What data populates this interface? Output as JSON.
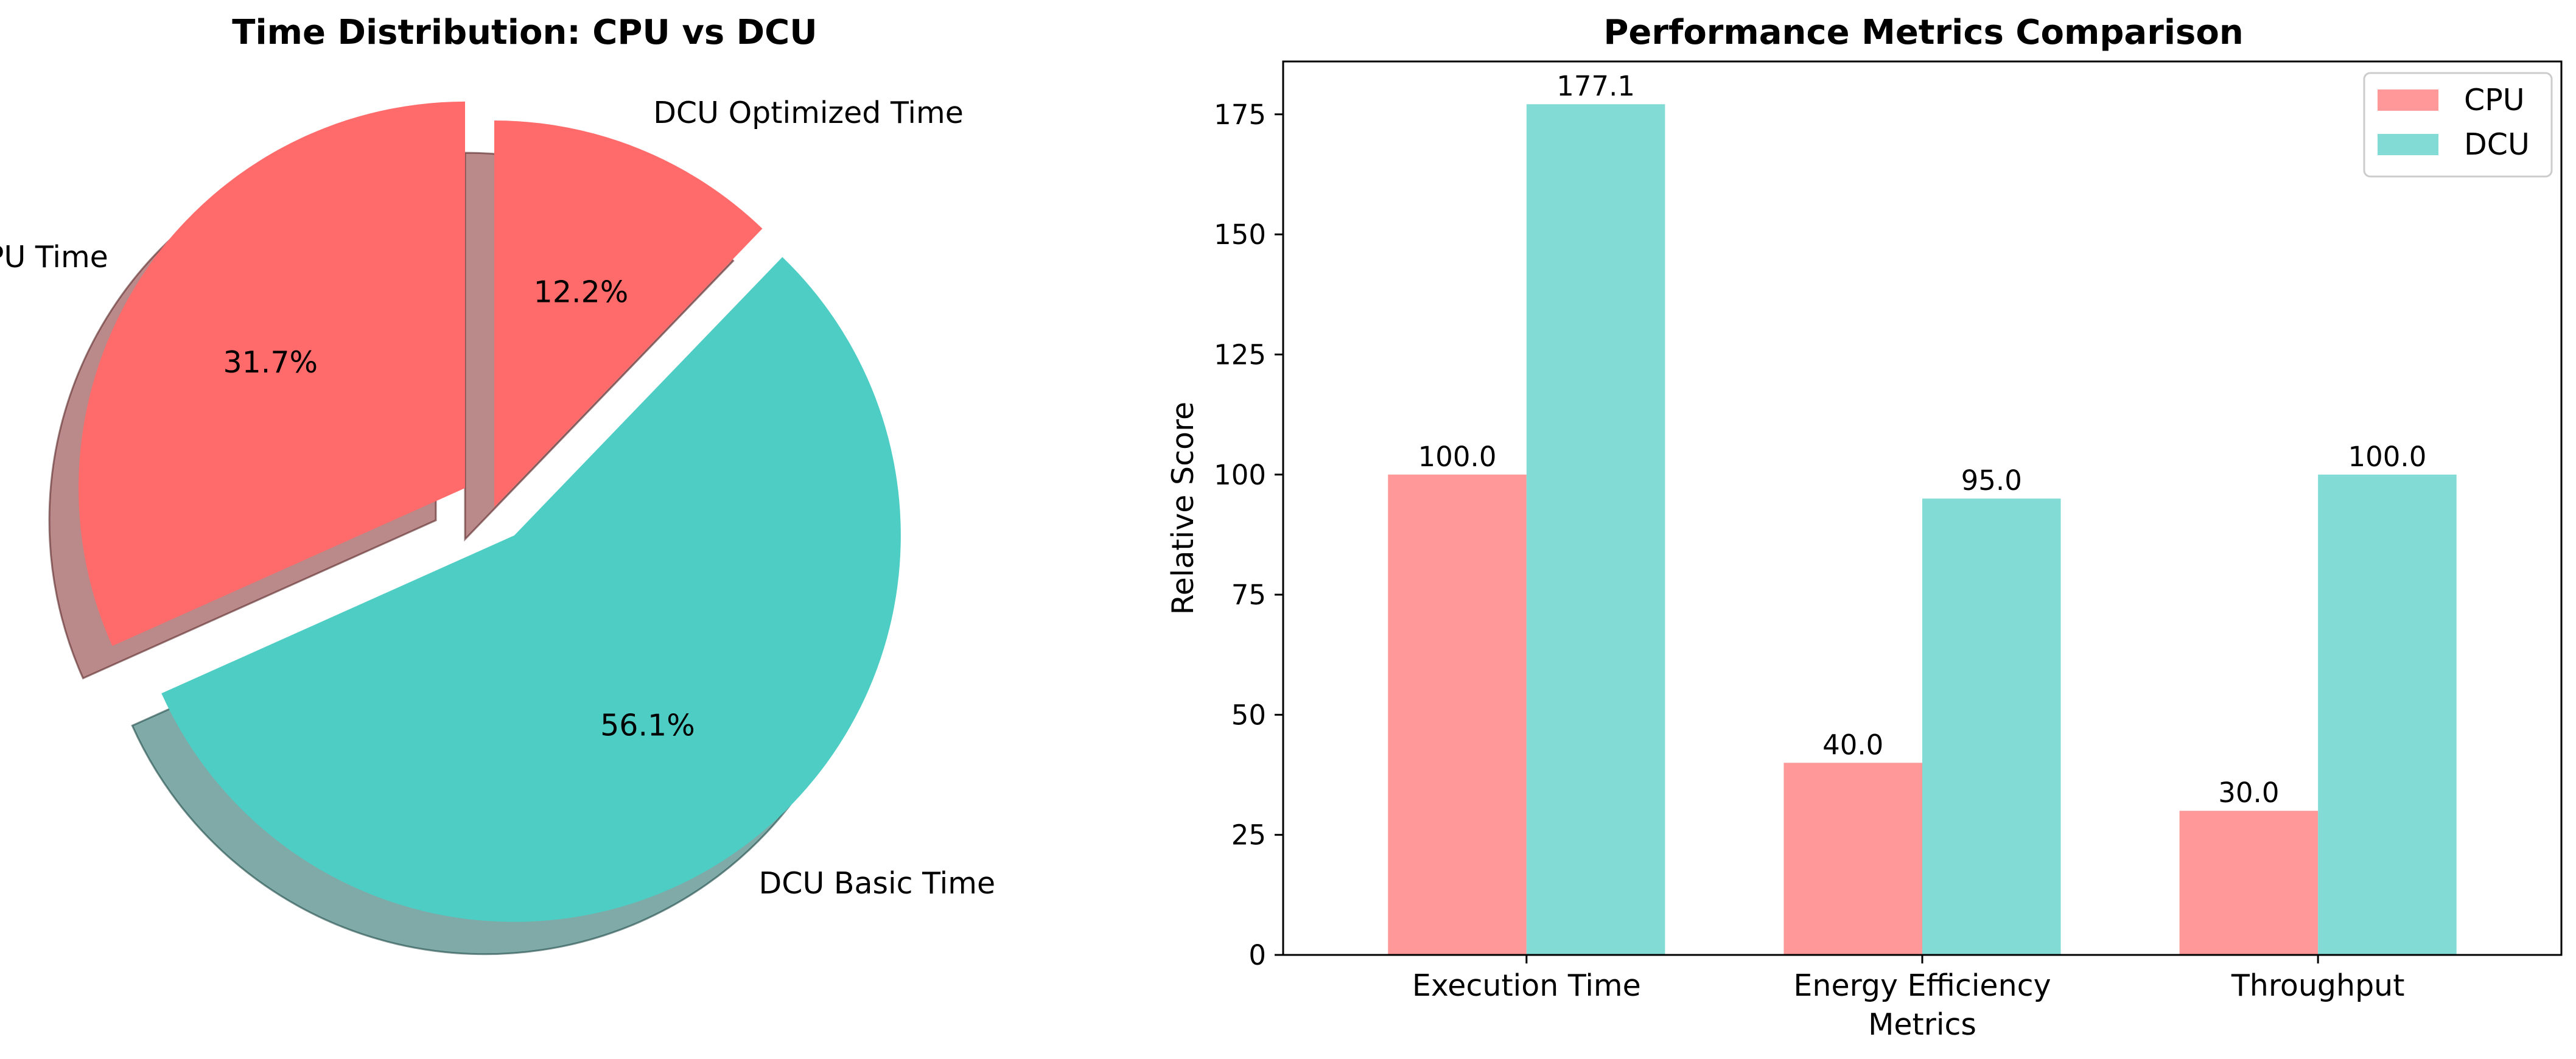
{
  "chart_data": [
    {
      "type": "pie",
      "title": "Time Distribution: CPU vs DCU",
      "slices": [
        {
          "label": "CPU Time",
          "value": 31.7,
          "pct_label": "31.7%",
          "color": "#FF6B6B",
          "exploded": true
        },
        {
          "label": "DCU Basic Time",
          "value": 56.1,
          "pct_label": "56.1%",
          "color": "#4ECDC4",
          "exploded": true
        },
        {
          "label": "DCU Optimized Time",
          "value": 12.2,
          "pct_label": "12.2%",
          "color": "#FF6B6B",
          "exploded": false
        }
      ],
      "start_angle_deg": 90,
      "direction": "counterclockwise",
      "shadow": true
    },
    {
      "type": "bar",
      "title": "Performance Metrics Comparison",
      "xlabel": "Metrics",
      "ylabel": "Relative Score",
      "categories": [
        "Execution Time",
        "Energy Efficiency",
        "Throughput"
      ],
      "series": [
        {
          "name": "CPU",
          "values": [
            100.0,
            40.0,
            30.0
          ],
          "labels": [
            "100.0",
            "40.0",
            "30.0"
          ],
          "color": "#FF9999"
        },
        {
          "name": "DCU",
          "values": [
            177.1,
            95.0,
            100.0
          ],
          "labels": [
            "177.1",
            "95.0",
            "100.0"
          ],
          "color": "#82DCD5"
        }
      ],
      "yticks": [
        0,
        25,
        50,
        75,
        100,
        125,
        150,
        175
      ],
      "ytick_labels": [
        "0",
        "25",
        "50",
        "75",
        "100",
        "125",
        "150",
        "175"
      ],
      "ylim": [
        0,
        186
      ],
      "legend": "top-right",
      "grid": false
    }
  ]
}
